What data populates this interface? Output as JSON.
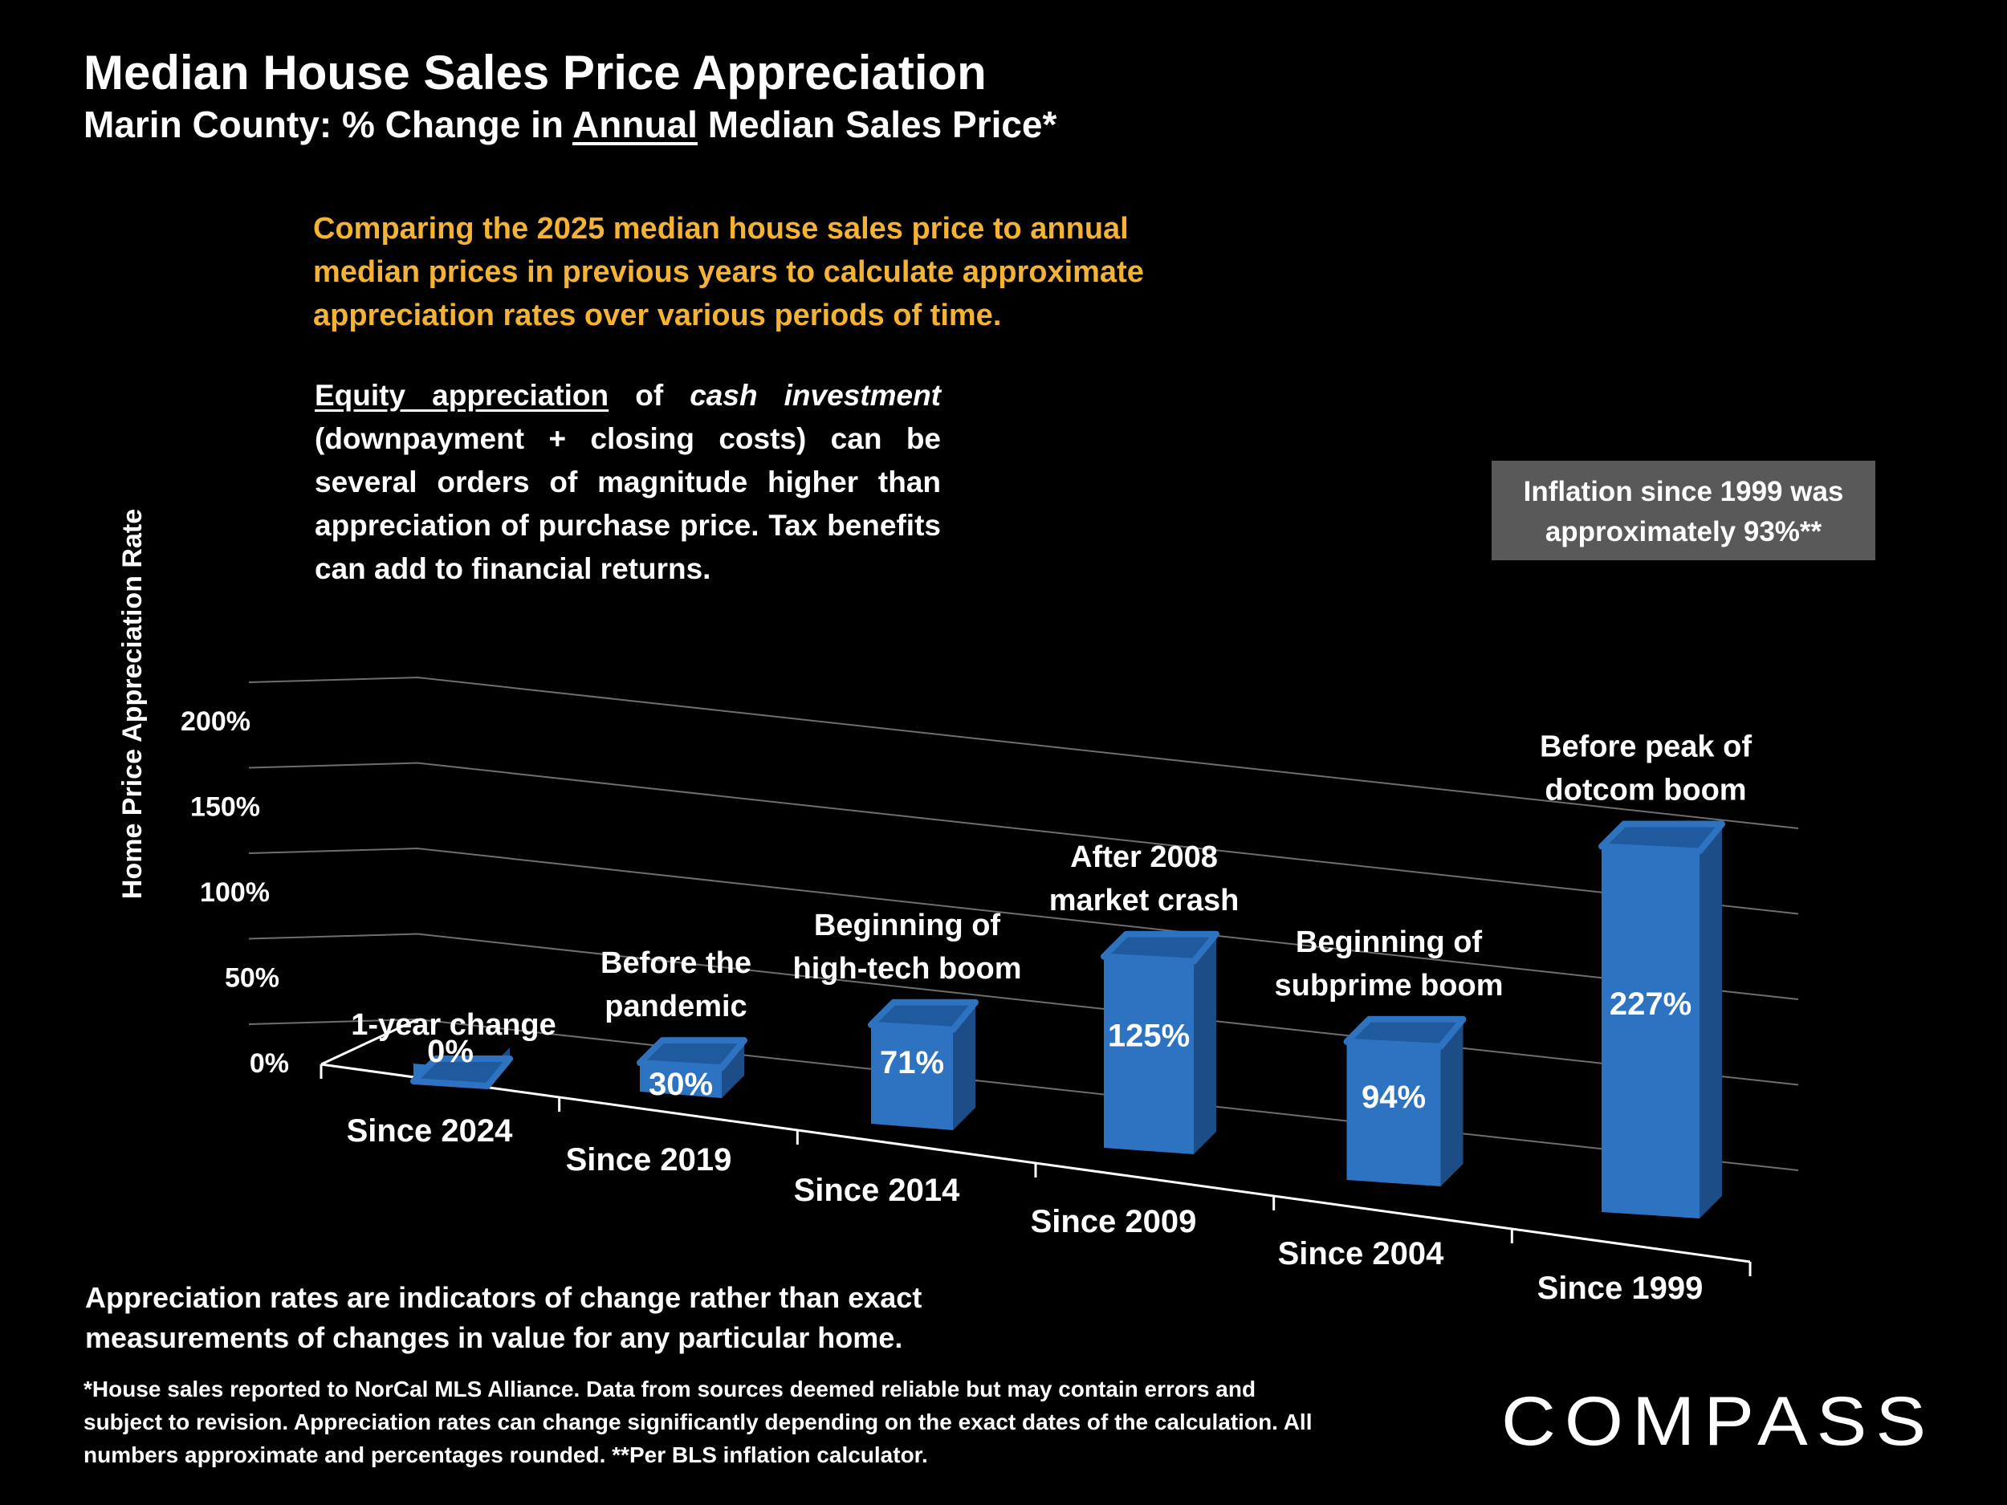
{
  "title": "Median House Sales Price Appreciation",
  "subtitle": {
    "prefix": "Marin County: % Change in ",
    "underlined": "Annual",
    "suffix": " Median Sales Price*"
  },
  "intro_text": "Comparing the 2025 median house sales price to annual median prices in previous years to calculate approximate appreciation rates over various periods of time.",
  "equity_note": {
    "underlined": "Equity appreciation",
    "of": " of ",
    "italic": "cash investment",
    "rest": " (downpayment + closing costs) can be several orders of magnitude higher than appreciation of purchase price. Tax benefits can add to financial returns."
  },
  "inflation_box": "Inflation since 1999 was approximately 93%**",
  "bottom_note": "Appreciation rates are indicators of change rather than exact measurements of changes in value for any particular home.",
  "footnote": "*House sales reported to NorCal MLS Alliance. Data from sources deemed reliable but may contain errors and subject to revision. Appreciation rates can change significantly depending on the exact dates of the calculation. All numbers  approximate and percentages rounded. **Per BLS inflation calculator.",
  "logo": "COMPASS",
  "colors": {
    "background": "#000000",
    "bar_front": "#2e73c2",
    "bar_side": "#1d4d86",
    "bar_top": "#1f5a9e",
    "accent": "#f5b335",
    "inflation_box": "#595959"
  },
  "chart_data": {
    "type": "bar",
    "title": "Median House Sales Price Appreciation",
    "ylabel": "Home Price Appreciation Rate",
    "xlabel": "",
    "ylim": [
      0,
      200
    ],
    "yticks": [
      "0%",
      "50%",
      "100%",
      "150%",
      "200%"
    ],
    "categories": [
      "Since 2024",
      "Since 2019",
      "Since 2014",
      "Since 2009",
      "Since 2004",
      "Since 1999"
    ],
    "values": [
      0,
      30,
      71,
      125,
      94,
      227
    ],
    "value_labels": [
      "0%",
      "30%",
      "71%",
      "125%",
      "94%",
      "227%"
    ],
    "annotations": [
      [
        "1-year change"
      ],
      [
        "Before the",
        "pandemic"
      ],
      [
        "Beginning of",
        "high-tech boom"
      ],
      [
        "After 2008",
        "market crash"
      ],
      [
        "Beginning of",
        "subprime boom"
      ],
      [
        "Before peak of",
        "dotcom boom"
      ]
    ]
  }
}
